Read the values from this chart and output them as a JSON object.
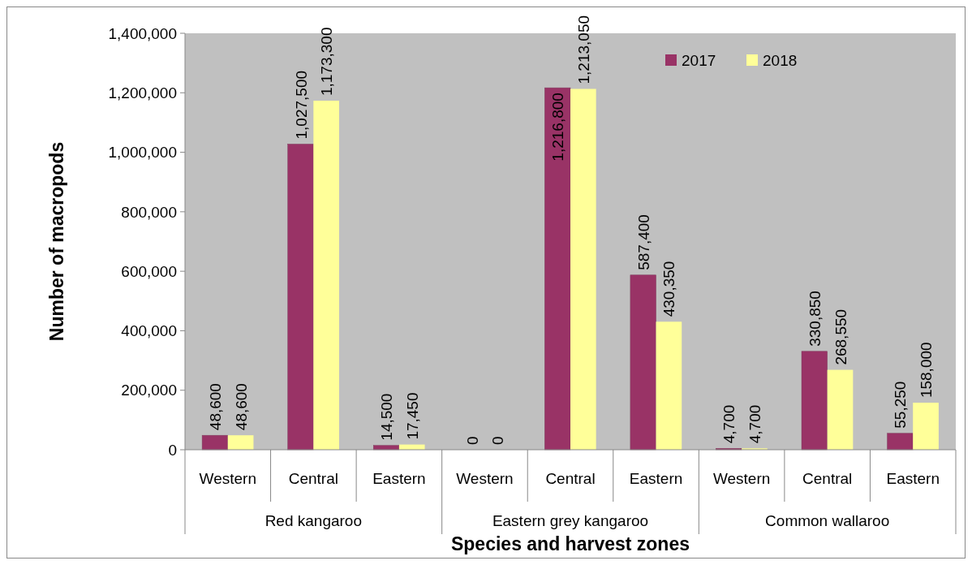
{
  "chart_data": {
    "type": "bar",
    "xlabel": "Species and harvest zones",
    "ylabel": "Number of macropods",
    "categories": [
      "Western",
      "Central",
      "Eastern",
      "Western",
      "Central",
      "Eastern",
      "Western",
      "Central",
      "Eastern"
    ],
    "annotations": [
      "Red kangaroo",
      "Eastern grey kangaroo",
      "Common wallaroo"
    ],
    "series": [
      {
        "name": "2017",
        "color": "#993366",
        "values": [
          48600,
          1027500,
          14500,
          0,
          1216800,
          587400,
          4700,
          330850,
          55250
        ],
        "value_labels": [
          "48,600",
          "1,027,500",
          "14,500",
          "0",
          "1,216,800",
          "587,400",
          "4,700",
          "330,850",
          "55,250"
        ]
      },
      {
        "name": "2018",
        "color": "#ffff99",
        "values": [
          48600,
          1173300,
          17450,
          0,
          1213050,
          430350,
          4700,
          268550,
          158000
        ],
        "value_labels": [
          "48,600",
          "1,173,300",
          "17,450",
          "0",
          "1,213,050",
          "430,350",
          "4,700",
          "268,550",
          "158,000"
        ]
      }
    ],
    "ylim": [
      0,
      1400000
    ],
    "yticks": [
      {
        "value": 0,
        "label": "0"
      },
      {
        "value": 200000,
        "label": "200,000"
      },
      {
        "value": 400000,
        "label": "400,000"
      },
      {
        "value": 600000,
        "label": "600,000"
      },
      {
        "value": 800000,
        "label": "800,000"
      },
      {
        "value": 1000000,
        "label": "1,000,000"
      },
      {
        "value": 1200000,
        "label": "1,200,000"
      },
      {
        "value": 1400000,
        "label": "1,400,000"
      }
    ],
    "legend": "top right",
    "grid": false
  }
}
